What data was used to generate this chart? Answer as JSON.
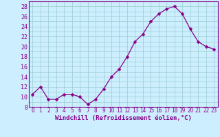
{
  "x": [
    0,
    1,
    2,
    3,
    4,
    5,
    6,
    7,
    8,
    9,
    10,
    11,
    12,
    13,
    14,
    15,
    16,
    17,
    18,
    19,
    20,
    21,
    22,
    23
  ],
  "y": [
    10.5,
    12.0,
    9.5,
    9.5,
    10.5,
    10.5,
    10.0,
    8.5,
    9.5,
    11.5,
    14.0,
    15.5,
    18.0,
    21.0,
    22.5,
    25.0,
    26.5,
    27.5,
    28.0,
    26.5,
    23.5,
    21.0,
    20.0,
    19.5
  ],
  "line_color": "#880088",
  "marker": "D",
  "marker_size": 2.5,
  "bg_color": "#cceeff",
  "grid_color": "#99cccc",
  "xlabel": "Windchill (Refroidissement éolien,°C)",
  "xlabel_color": "#880088",
  "xlabel_fontsize": 6.5,
  "ylim": [
    8,
    29
  ],
  "xlim": [
    -0.5,
    23.5
  ],
  "yticks": [
    8,
    10,
    12,
    14,
    16,
    18,
    20,
    22,
    24,
    26,
    28
  ],
  "xtick_labels": [
    "0",
    "1",
    "2",
    "3",
    "4",
    "5",
    "6",
    "7",
    "8",
    "9",
    "10",
    "11",
    "12",
    "13",
    "14",
    "15",
    "16",
    "17",
    "18",
    "19",
    "20",
    "21",
    "22",
    "23"
  ],
  "tick_fontsize": 5.5,
  "tick_color": "#880088",
  "spine_color": "#880088",
  "linewidth": 0.9
}
